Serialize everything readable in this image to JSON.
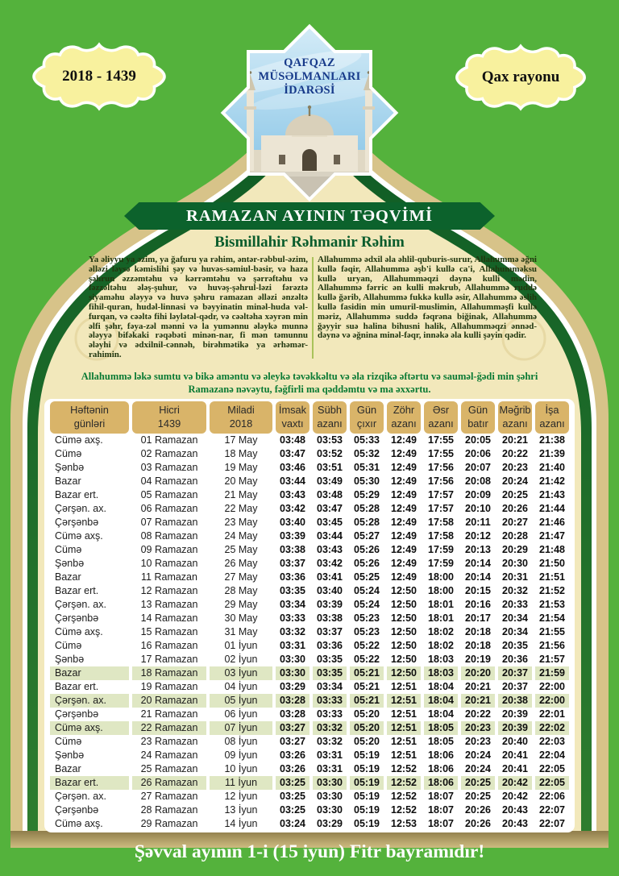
{
  "header": {
    "year_badge": "2018 - 1439",
    "region_badge": "Qax rayonu",
    "emblem_title": "QAFQAZ\nMÜSƏLMANLARI\nİDARƏSİ"
  },
  "banner_title": "RAMAZAN AYININ TƏQVİMİ",
  "bismillah": "Bismillahir Rəhmanir Rəhim",
  "prayers": {
    "left": "Ya əliyyu ya əzim, ya ğafuru ya rəhim, əntər-rəbbul-əzim, əlləzi ləysə kəmislihi şəy və huvəs-səmiul-bəsir, və haza şəhrun əzzəmtəhu və kərrəmtəhu və şərrəftəhu və fəzzəltəhu ələş-şuhur, və huvəş-şəhrul-ləzi fərəztə siyaməhu ələyyə və huvə şəhru ramazan əlləzi ənzəltə fihil-quran, hudəl-linnasi və bəyyinatin minəl-huda vəl-furqan, və cəəltə fihi ləylətəl-qədr, və cəəltəha xəyrən min əlfi şəhr, fəya-zəl mənni və la yumənnu ələykə munnə ələyyə bifəkaki rəqəbəti minən-nar, fi mən təmunnu ələyhi və ədxilnil-cənnəh, birəhmətikə ya ərhəmər-rahimin.",
    "right": "Allahummə ədxil əla əhlil-quburis-surur, Allahummə əğni kullə fəqir, Allahummə əşb'i kullə ca'i, Allahumməksu kullə uryan, Allahumməqzi dəynə kulli mədin, Allahummə fərric ən kulli məkrub, Allahummə ruddə kullə ğərib, Allahummə fukkə kullə əsir, Allahummə əslih kullə fasidin min umuril-muslimin, Allahumməşfi kullə məriz, Allahummə suddə fəqrəna biğinak, Allahummə ğəyyir suə halina bihusni halik, Allahumməqzi ənnəd-dəynə və əğnina minəl-fəqr, innəkə əla kulli şəyin qədir.",
    "bottom": "Allahummə ləkə sumtu və bikə aməntu və əleykə təvəkkəltu və əla rizqikə əftərtu və sauməl-ğədi min şəhri Ramazanə nəvəytu, fəğfirli ma qəddəmtu və ma əxxərtu."
  },
  "table": {
    "headers": [
      "Həftənin\ngünləri",
      "Hicri\n1439",
      "Miladi\n2018",
      "İmsak\nvaxtı",
      "Sübh\nazanı",
      "Gün\nçıxır",
      "Zöhr\nazanı",
      "Əsr\nazanı",
      "Gün\nbatır",
      "Məğrib\nazanı",
      "İşa\nazanı"
    ],
    "rows": [
      {
        "day": "Cümə axş.",
        "hicri": "01 Ramazan",
        "miladi": "17 May",
        "times": [
          "03:48",
          "03:53",
          "05:33",
          "12:49",
          "17:55",
          "20:05",
          "20:21",
          "21:38"
        ],
        "highlight": false
      },
      {
        "day": "Cümə",
        "hicri": "02 Ramazan",
        "miladi": "18 May",
        "times": [
          "03:47",
          "03:52",
          "05:32",
          "12:49",
          "17:55",
          "20:06",
          "20:22",
          "21:39"
        ],
        "highlight": false
      },
      {
        "day": "Şənbə",
        "hicri": "03 Ramazan",
        "miladi": "19 May",
        "times": [
          "03:46",
          "03:51",
          "05:31",
          "12:49",
          "17:56",
          "20:07",
          "20:23",
          "21:40"
        ],
        "highlight": false
      },
      {
        "day": "Bazar",
        "hicri": "04 Ramazan",
        "miladi": "20 May",
        "times": [
          "03:44",
          "03:49",
          "05:30",
          "12:49",
          "17:56",
          "20:08",
          "20:24",
          "21:42"
        ],
        "highlight": false
      },
      {
        "day": "Bazar ert.",
        "hicri": "05 Ramazan",
        "miladi": "21 May",
        "times": [
          "03:43",
          "03:48",
          "05:29",
          "12:49",
          "17:57",
          "20:09",
          "20:25",
          "21:43"
        ],
        "highlight": false
      },
      {
        "day": "Çərşən. ax.",
        "hicri": "06 Ramazan",
        "miladi": "22 May",
        "times": [
          "03:42",
          "03:47",
          "05:28",
          "12:49",
          "17:57",
          "20:10",
          "20:26",
          "21:44"
        ],
        "highlight": false
      },
      {
        "day": "Çərşənbə",
        "hicri": "07 Ramazan",
        "miladi": "23 May",
        "times": [
          "03:40",
          "03:45",
          "05:28",
          "12:49",
          "17:58",
          "20:11",
          "20:27",
          "21:46"
        ],
        "highlight": false
      },
      {
        "day": "Cümə axş.",
        "hicri": "08 Ramazan",
        "miladi": "24 May",
        "times": [
          "03:39",
          "03:44",
          "05:27",
          "12:49",
          "17:58",
          "20:12",
          "20:28",
          "21:47"
        ],
        "highlight": false
      },
      {
        "day": "Cümə",
        "hicri": "09 Ramazan",
        "miladi": "25 May",
        "times": [
          "03:38",
          "03:43",
          "05:26",
          "12:49",
          "17:59",
          "20:13",
          "20:29",
          "21:48"
        ],
        "highlight": false
      },
      {
        "day": "Şənbə",
        "hicri": "10 Ramazan",
        "miladi": "26 May",
        "times": [
          "03:37",
          "03:42",
          "05:26",
          "12:49",
          "17:59",
          "20:14",
          "20:30",
          "21:50"
        ],
        "highlight": false
      },
      {
        "day": "Bazar",
        "hicri": "11 Ramazan",
        "miladi": "27 May",
        "times": [
          "03:36",
          "03:41",
          "05:25",
          "12:49",
          "18:00",
          "20:14",
          "20:31",
          "21:51"
        ],
        "highlight": false
      },
      {
        "day": "Bazar ert.",
        "hicri": "12 Ramazan",
        "miladi": "28 May",
        "times": [
          "03:35",
          "03:40",
          "05:24",
          "12:50",
          "18:00",
          "20:15",
          "20:32",
          "21:52"
        ],
        "highlight": false
      },
      {
        "day": "Çərşən. ax.",
        "hicri": "13 Ramazan",
        "miladi": "29 May",
        "times": [
          "03:34",
          "03:39",
          "05:24",
          "12:50",
          "18:01",
          "20:16",
          "20:33",
          "21:53"
        ],
        "highlight": false
      },
      {
        "day": "Çərşənbə",
        "hicri": "14 Ramazan",
        "miladi": "30 May",
        "times": [
          "03:33",
          "03:38",
          "05:23",
          "12:50",
          "18:01",
          "20:17",
          "20:34",
          "21:54"
        ],
        "highlight": false
      },
      {
        "day": "Cümə axş.",
        "hicri": "15 Ramazan",
        "miladi": "31 May",
        "times": [
          "03:32",
          "03:37",
          "05:23",
          "12:50",
          "18:02",
          "20:18",
          "20:34",
          "21:55"
        ],
        "highlight": false
      },
      {
        "day": "Cümə",
        "hicri": "16 Ramazan",
        "miladi": "01 İyun",
        "times": [
          "03:31",
          "03:36",
          "05:22",
          "12:50",
          "18:02",
          "20:18",
          "20:35",
          "21:56"
        ],
        "highlight": false
      },
      {
        "day": "Şənbə",
        "hicri": "17 Ramazan",
        "miladi": "02 İyun",
        "times": [
          "03:30",
          "03:35",
          "05:22",
          "12:50",
          "18:03",
          "20:19",
          "20:36",
          "21:57"
        ],
        "highlight": false
      },
      {
        "day": "Bazar",
        "hicri": "18 Ramazan",
        "miladi": "03 İyun",
        "times": [
          "03:30",
          "03:35",
          "05:21",
          "12:50",
          "18:03",
          "20:20",
          "20:37",
          "21:59"
        ],
        "highlight": true
      },
      {
        "day": "Bazar ert.",
        "hicri": "19 Ramazan",
        "miladi": "04 İyun",
        "times": [
          "03:29",
          "03:34",
          "05:21",
          "12:51",
          "18:04",
          "20:21",
          "20:37",
          "22:00"
        ],
        "highlight": false
      },
      {
        "day": "Çərşən. ax.",
        "hicri": "20 Ramazan",
        "miladi": "05 İyun",
        "times": [
          "03:28",
          "03:33",
          "05:21",
          "12:51",
          "18:04",
          "20:21",
          "20:38",
          "22:00"
        ],
        "highlight": true
      },
      {
        "day": "Çərşənbə",
        "hicri": "21 Ramazan",
        "miladi": "06 İyun",
        "times": [
          "03:28",
          "03:33",
          "05:20",
          "12:51",
          "18:04",
          "20:22",
          "20:39",
          "22:01"
        ],
        "highlight": false
      },
      {
        "day": "Cümə axş.",
        "hicri": "22 Ramazan",
        "miladi": "07 İyun",
        "times": [
          "03:27",
          "03:32",
          "05:20",
          "12:51",
          "18:05",
          "20:23",
          "20:39",
          "22:02"
        ],
        "highlight": true
      },
      {
        "day": "Cümə",
        "hicri": "23 Ramazan",
        "miladi": "08 İyun",
        "times": [
          "03:27",
          "03:32",
          "05:20",
          "12:51",
          "18:05",
          "20:23",
          "20:40",
          "22:03"
        ],
        "highlight": false
      },
      {
        "day": "Şənbə",
        "hicri": "24 Ramazan",
        "miladi": "09 İyun",
        "times": [
          "03:26",
          "03:31",
          "05:19",
          "12:51",
          "18:06",
          "20:24",
          "20:41",
          "22:04"
        ],
        "highlight": false
      },
      {
        "day": "Bazar",
        "hicri": "25 Ramazan",
        "miladi": "10 İyun",
        "times": [
          "03:26",
          "03:31",
          "05:19",
          "12:52",
          "18:06",
          "20:24",
          "20:41",
          "22:05"
        ],
        "highlight": false
      },
      {
        "day": "Bazar ert.",
        "hicri": "26 Ramazan",
        "miladi": "11 İyun",
        "times": [
          "03:25",
          "03:30",
          "05:19",
          "12:52",
          "18:06",
          "20:25",
          "20:42",
          "22:05"
        ],
        "highlight": true
      },
      {
        "day": "Çərşən. ax.",
        "hicri": "27 Ramazan",
        "miladi": "12 İyun",
        "times": [
          "03:25",
          "03:30",
          "05:19",
          "12:52",
          "18:07",
          "20:25",
          "20:42",
          "22:06"
        ],
        "highlight": false
      },
      {
        "day": "Çərşənbə",
        "hicri": "28 Ramazan",
        "miladi": "13 İyun",
        "times": [
          "03:25",
          "03:30",
          "05:19",
          "12:52",
          "18:07",
          "20:26",
          "20:43",
          "22:07"
        ],
        "highlight": false
      },
      {
        "day": "Cümə axş.",
        "hicri": "29 Ramazan",
        "miladi": "14 İyun",
        "times": [
          "03:24",
          "03:29",
          "05:19",
          "12:53",
          "18:07",
          "20:26",
          "20:43",
          "22:07"
        ],
        "highlight": false
      }
    ]
  },
  "footer": "Şəvval ayının 1-i (15 iyun) Fitr bayramıdır!",
  "colors": {
    "background_green": "#54b23c",
    "arch_tan": "#d7c389",
    "panel_cream": "#f2e8bb",
    "banner_green": "#0c622c",
    "header_cell_tan": "#d9b469",
    "row_highlight": "#dfe7c3",
    "badge_yellow": "#f8f19e",
    "emblem_text_blue": "#173a8a"
  }
}
